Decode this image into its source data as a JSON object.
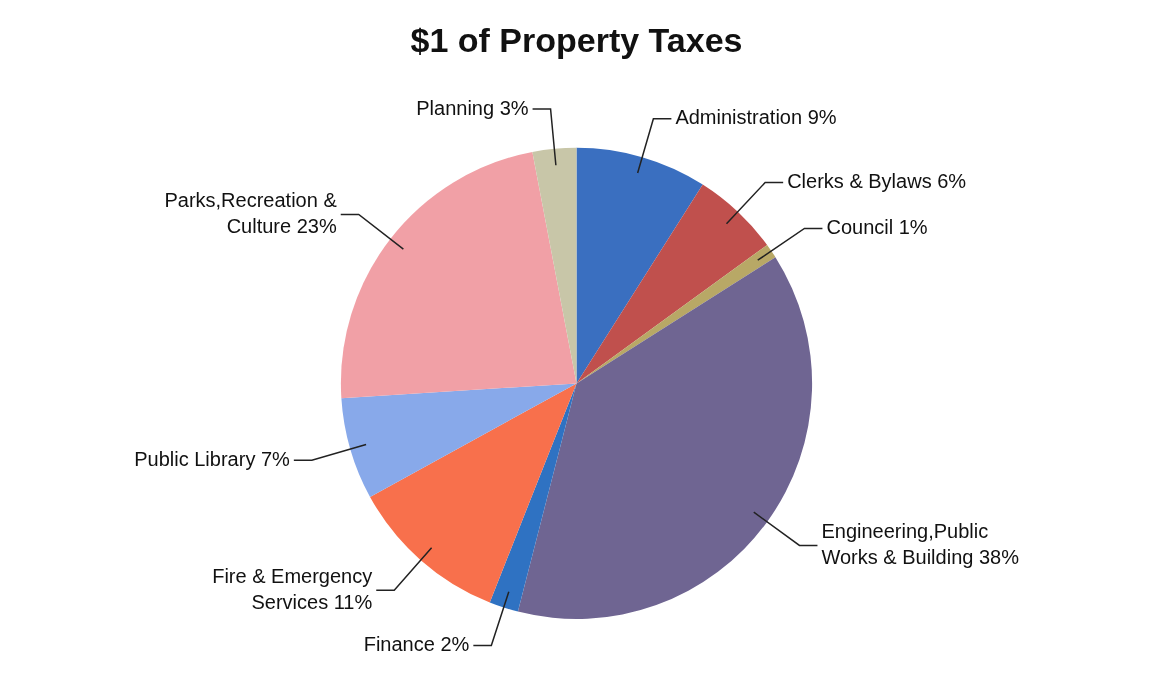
{
  "chart_data": {
    "type": "pie",
    "title": "$1 of Property Taxes",
    "categories": [
      "Administration",
      "Clerks & Bylaws",
      "Council",
      "Engineering,Public Works & Building",
      "Finance",
      "Fire & Emergency Services",
      "Public Library",
      "Parks,Recreation & Culture",
      "Planning"
    ],
    "values": [
      9,
      6,
      1,
      38,
      2,
      11,
      7,
      23,
      3
    ],
    "colors": [
      "#3a6fc0",
      "#c0504d",
      "#b8a866",
      "#6f6592",
      "#2f72c2",
      "#f8704c",
      "#88a9ea",
      "#f1a0a6",
      "#c8c6a8"
    ],
    "value_labels": [
      "9%",
      "6%",
      "1%",
      "38%",
      "2%",
      "11%",
      "7%",
      "23%",
      "3%"
    ],
    "legend": false
  }
}
